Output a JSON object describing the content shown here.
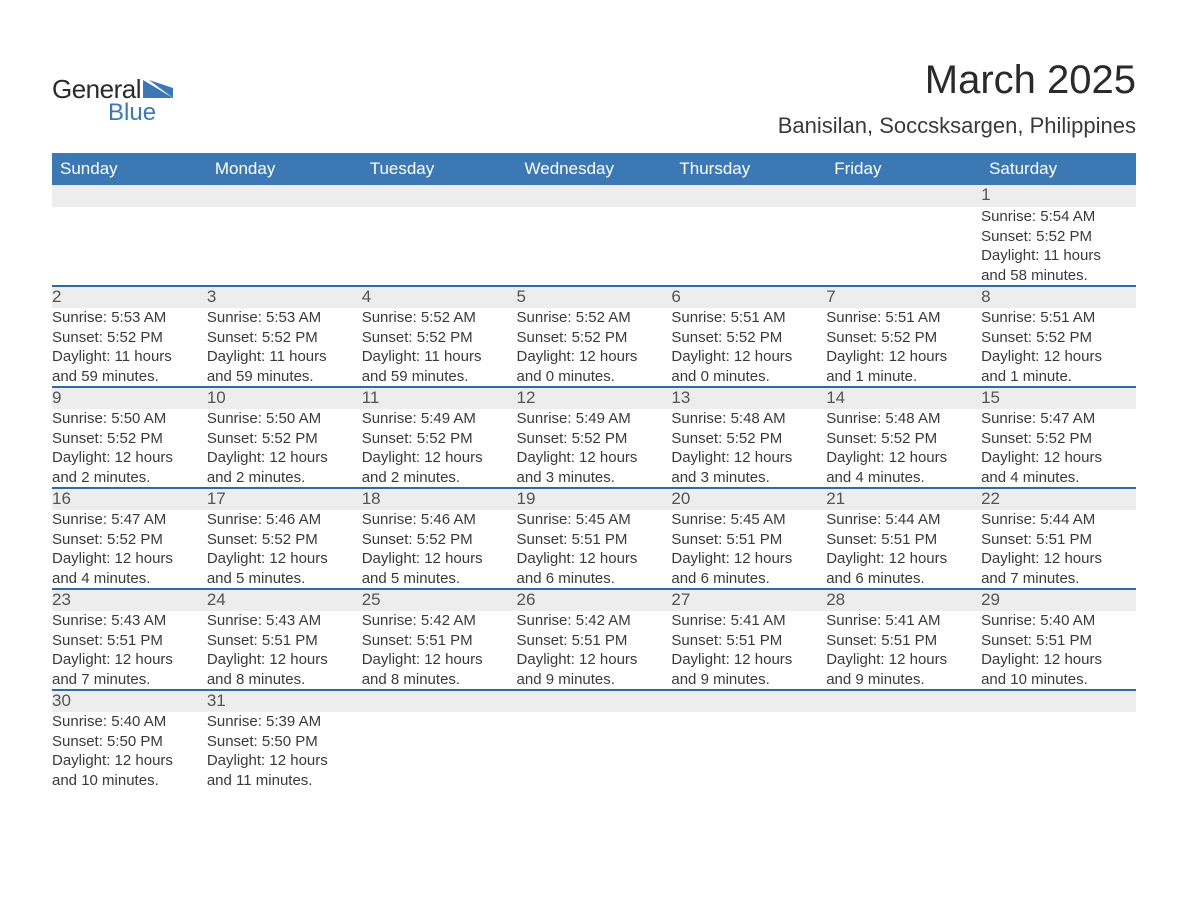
{
  "logo": {
    "text_a": "General",
    "text_b": "Blue"
  },
  "title": "March 2025",
  "location": "Banisilan, Soccsksargen, Philippines",
  "colors": {
    "header_bg": "#3c78b4",
    "divider": "#2f6aa8",
    "gray_band": "#ededed",
    "text": "#3a3a3a",
    "title": "#2a2a2a",
    "white": "#ffffff"
  },
  "day_headers": [
    "Sunday",
    "Monday",
    "Tuesday",
    "Wednesday",
    "Thursday",
    "Friday",
    "Saturday"
  ],
  "weeks": [
    [
      null,
      null,
      null,
      null,
      null,
      null,
      {
        "n": "1",
        "sunrise": "Sunrise: 5:54 AM",
        "sunset": "Sunset: 5:52 PM",
        "dl1": "Daylight: 11 hours",
        "dl2": "and 58 minutes."
      }
    ],
    [
      {
        "n": "2",
        "sunrise": "Sunrise: 5:53 AM",
        "sunset": "Sunset: 5:52 PM",
        "dl1": "Daylight: 11 hours",
        "dl2": "and 59 minutes."
      },
      {
        "n": "3",
        "sunrise": "Sunrise: 5:53 AM",
        "sunset": "Sunset: 5:52 PM",
        "dl1": "Daylight: 11 hours",
        "dl2": "and 59 minutes."
      },
      {
        "n": "4",
        "sunrise": "Sunrise: 5:52 AM",
        "sunset": "Sunset: 5:52 PM",
        "dl1": "Daylight: 11 hours",
        "dl2": "and 59 minutes."
      },
      {
        "n": "5",
        "sunrise": "Sunrise: 5:52 AM",
        "sunset": "Sunset: 5:52 PM",
        "dl1": "Daylight: 12 hours",
        "dl2": "and 0 minutes."
      },
      {
        "n": "6",
        "sunrise": "Sunrise: 5:51 AM",
        "sunset": "Sunset: 5:52 PM",
        "dl1": "Daylight: 12 hours",
        "dl2": "and 0 minutes."
      },
      {
        "n": "7",
        "sunrise": "Sunrise: 5:51 AM",
        "sunset": "Sunset: 5:52 PM",
        "dl1": "Daylight: 12 hours",
        "dl2": "and 1 minute."
      },
      {
        "n": "8",
        "sunrise": "Sunrise: 5:51 AM",
        "sunset": "Sunset: 5:52 PM",
        "dl1": "Daylight: 12 hours",
        "dl2": "and 1 minute."
      }
    ],
    [
      {
        "n": "9",
        "sunrise": "Sunrise: 5:50 AM",
        "sunset": "Sunset: 5:52 PM",
        "dl1": "Daylight: 12 hours",
        "dl2": "and 2 minutes."
      },
      {
        "n": "10",
        "sunrise": "Sunrise: 5:50 AM",
        "sunset": "Sunset: 5:52 PM",
        "dl1": "Daylight: 12 hours",
        "dl2": "and 2 minutes."
      },
      {
        "n": "11",
        "sunrise": "Sunrise: 5:49 AM",
        "sunset": "Sunset: 5:52 PM",
        "dl1": "Daylight: 12 hours",
        "dl2": "and 2 minutes."
      },
      {
        "n": "12",
        "sunrise": "Sunrise: 5:49 AM",
        "sunset": "Sunset: 5:52 PM",
        "dl1": "Daylight: 12 hours",
        "dl2": "and 3 minutes."
      },
      {
        "n": "13",
        "sunrise": "Sunrise: 5:48 AM",
        "sunset": "Sunset: 5:52 PM",
        "dl1": "Daylight: 12 hours",
        "dl2": "and 3 minutes."
      },
      {
        "n": "14",
        "sunrise": "Sunrise: 5:48 AM",
        "sunset": "Sunset: 5:52 PM",
        "dl1": "Daylight: 12 hours",
        "dl2": "and 4 minutes."
      },
      {
        "n": "15",
        "sunrise": "Sunrise: 5:47 AM",
        "sunset": "Sunset: 5:52 PM",
        "dl1": "Daylight: 12 hours",
        "dl2": "and 4 minutes."
      }
    ],
    [
      {
        "n": "16",
        "sunrise": "Sunrise: 5:47 AM",
        "sunset": "Sunset: 5:52 PM",
        "dl1": "Daylight: 12 hours",
        "dl2": "and 4 minutes."
      },
      {
        "n": "17",
        "sunrise": "Sunrise: 5:46 AM",
        "sunset": "Sunset: 5:52 PM",
        "dl1": "Daylight: 12 hours",
        "dl2": "and 5 minutes."
      },
      {
        "n": "18",
        "sunrise": "Sunrise: 5:46 AM",
        "sunset": "Sunset: 5:52 PM",
        "dl1": "Daylight: 12 hours",
        "dl2": "and 5 minutes."
      },
      {
        "n": "19",
        "sunrise": "Sunrise: 5:45 AM",
        "sunset": "Sunset: 5:51 PM",
        "dl1": "Daylight: 12 hours",
        "dl2": "and 6 minutes."
      },
      {
        "n": "20",
        "sunrise": "Sunrise: 5:45 AM",
        "sunset": "Sunset: 5:51 PM",
        "dl1": "Daylight: 12 hours",
        "dl2": "and 6 minutes."
      },
      {
        "n": "21",
        "sunrise": "Sunrise: 5:44 AM",
        "sunset": "Sunset: 5:51 PM",
        "dl1": "Daylight: 12 hours",
        "dl2": "and 6 minutes."
      },
      {
        "n": "22",
        "sunrise": "Sunrise: 5:44 AM",
        "sunset": "Sunset: 5:51 PM",
        "dl1": "Daylight: 12 hours",
        "dl2": "and 7 minutes."
      }
    ],
    [
      {
        "n": "23",
        "sunrise": "Sunrise: 5:43 AM",
        "sunset": "Sunset: 5:51 PM",
        "dl1": "Daylight: 12 hours",
        "dl2": "and 7 minutes."
      },
      {
        "n": "24",
        "sunrise": "Sunrise: 5:43 AM",
        "sunset": "Sunset: 5:51 PM",
        "dl1": "Daylight: 12 hours",
        "dl2": "and 8 minutes."
      },
      {
        "n": "25",
        "sunrise": "Sunrise: 5:42 AM",
        "sunset": "Sunset: 5:51 PM",
        "dl1": "Daylight: 12 hours",
        "dl2": "and 8 minutes."
      },
      {
        "n": "26",
        "sunrise": "Sunrise: 5:42 AM",
        "sunset": "Sunset: 5:51 PM",
        "dl1": "Daylight: 12 hours",
        "dl2": "and 9 minutes."
      },
      {
        "n": "27",
        "sunrise": "Sunrise: 5:41 AM",
        "sunset": "Sunset: 5:51 PM",
        "dl1": "Daylight: 12 hours",
        "dl2": "and 9 minutes."
      },
      {
        "n": "28",
        "sunrise": "Sunrise: 5:41 AM",
        "sunset": "Sunset: 5:51 PM",
        "dl1": "Daylight: 12 hours",
        "dl2": "and 9 minutes."
      },
      {
        "n": "29",
        "sunrise": "Sunrise: 5:40 AM",
        "sunset": "Sunset: 5:51 PM",
        "dl1": "Daylight: 12 hours",
        "dl2": "and 10 minutes."
      }
    ],
    [
      {
        "n": "30",
        "sunrise": "Sunrise: 5:40 AM",
        "sunset": "Sunset: 5:50 PM",
        "dl1": "Daylight: 12 hours",
        "dl2": "and 10 minutes."
      },
      {
        "n": "31",
        "sunrise": "Sunrise: 5:39 AM",
        "sunset": "Sunset: 5:50 PM",
        "dl1": "Daylight: 12 hours",
        "dl2": "and 11 minutes."
      },
      null,
      null,
      null,
      null,
      null
    ]
  ]
}
